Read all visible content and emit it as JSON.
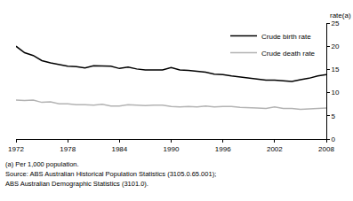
{
  "chart_data": {
    "type": "line",
    "y_label": "rate(a)",
    "annotations": [
      "(a) Per 1,000 population.",
      "Source: ABS Australian Historical Population Statistics (3105.0.65.001);",
      "ABS Australian Demographic Statistics (3101.0)."
    ],
    "x": [
      1972,
      1973,
      1974,
      1975,
      1976,
      1977,
      1978,
      1979,
      1980,
      1981,
      1982,
      1983,
      1984,
      1985,
      1986,
      1987,
      1988,
      1989,
      1990,
      1991,
      1992,
      1993,
      1994,
      1995,
      1996,
      1997,
      1998,
      1999,
      2000,
      2001,
      2002,
      2003,
      2004,
      2005,
      2006,
      2007,
      2008
    ],
    "series": [
      {
        "name": "Crude birth rate",
        "color": "#000000",
        "values": [
          20.0,
          18.6,
          18.0,
          16.9,
          16.4,
          16.1,
          15.7,
          15.6,
          15.3,
          15.8,
          15.8,
          15.7,
          15.2,
          15.5,
          15.1,
          14.9,
          14.9,
          14.9,
          15.4,
          14.9,
          14.8,
          14.6,
          14.4,
          14.0,
          13.9,
          13.6,
          13.4,
          13.2,
          13.0,
          12.7,
          12.7,
          12.5,
          12.4,
          12.8,
          13.1,
          13.6,
          13.9
        ]
      },
      {
        "name": "Crude death rate",
        "color": "#b3b3b3",
        "values": [
          8.4,
          8.3,
          8.4,
          7.9,
          8.0,
          7.6,
          7.6,
          7.4,
          7.4,
          7.3,
          7.5,
          7.1,
          7.1,
          7.4,
          7.3,
          7.2,
          7.3,
          7.3,
          7.0,
          6.9,
          7.0,
          6.9,
          7.1,
          6.9,
          7.0,
          7.0,
          6.8,
          6.8,
          6.7,
          6.6,
          6.9,
          6.6,
          6.6,
          6.4,
          6.5,
          6.6,
          6.7
        ]
      }
    ],
    "xlim": [
      1972,
      2008
    ],
    "xticks": [
      1972,
      1978,
      1984,
      1990,
      1996,
      2002,
      2008
    ],
    "ylim": [
      0,
      25
    ],
    "yticks": [
      0,
      5,
      10,
      15,
      20,
      25
    ],
    "grid": false,
    "legend": "top right"
  }
}
